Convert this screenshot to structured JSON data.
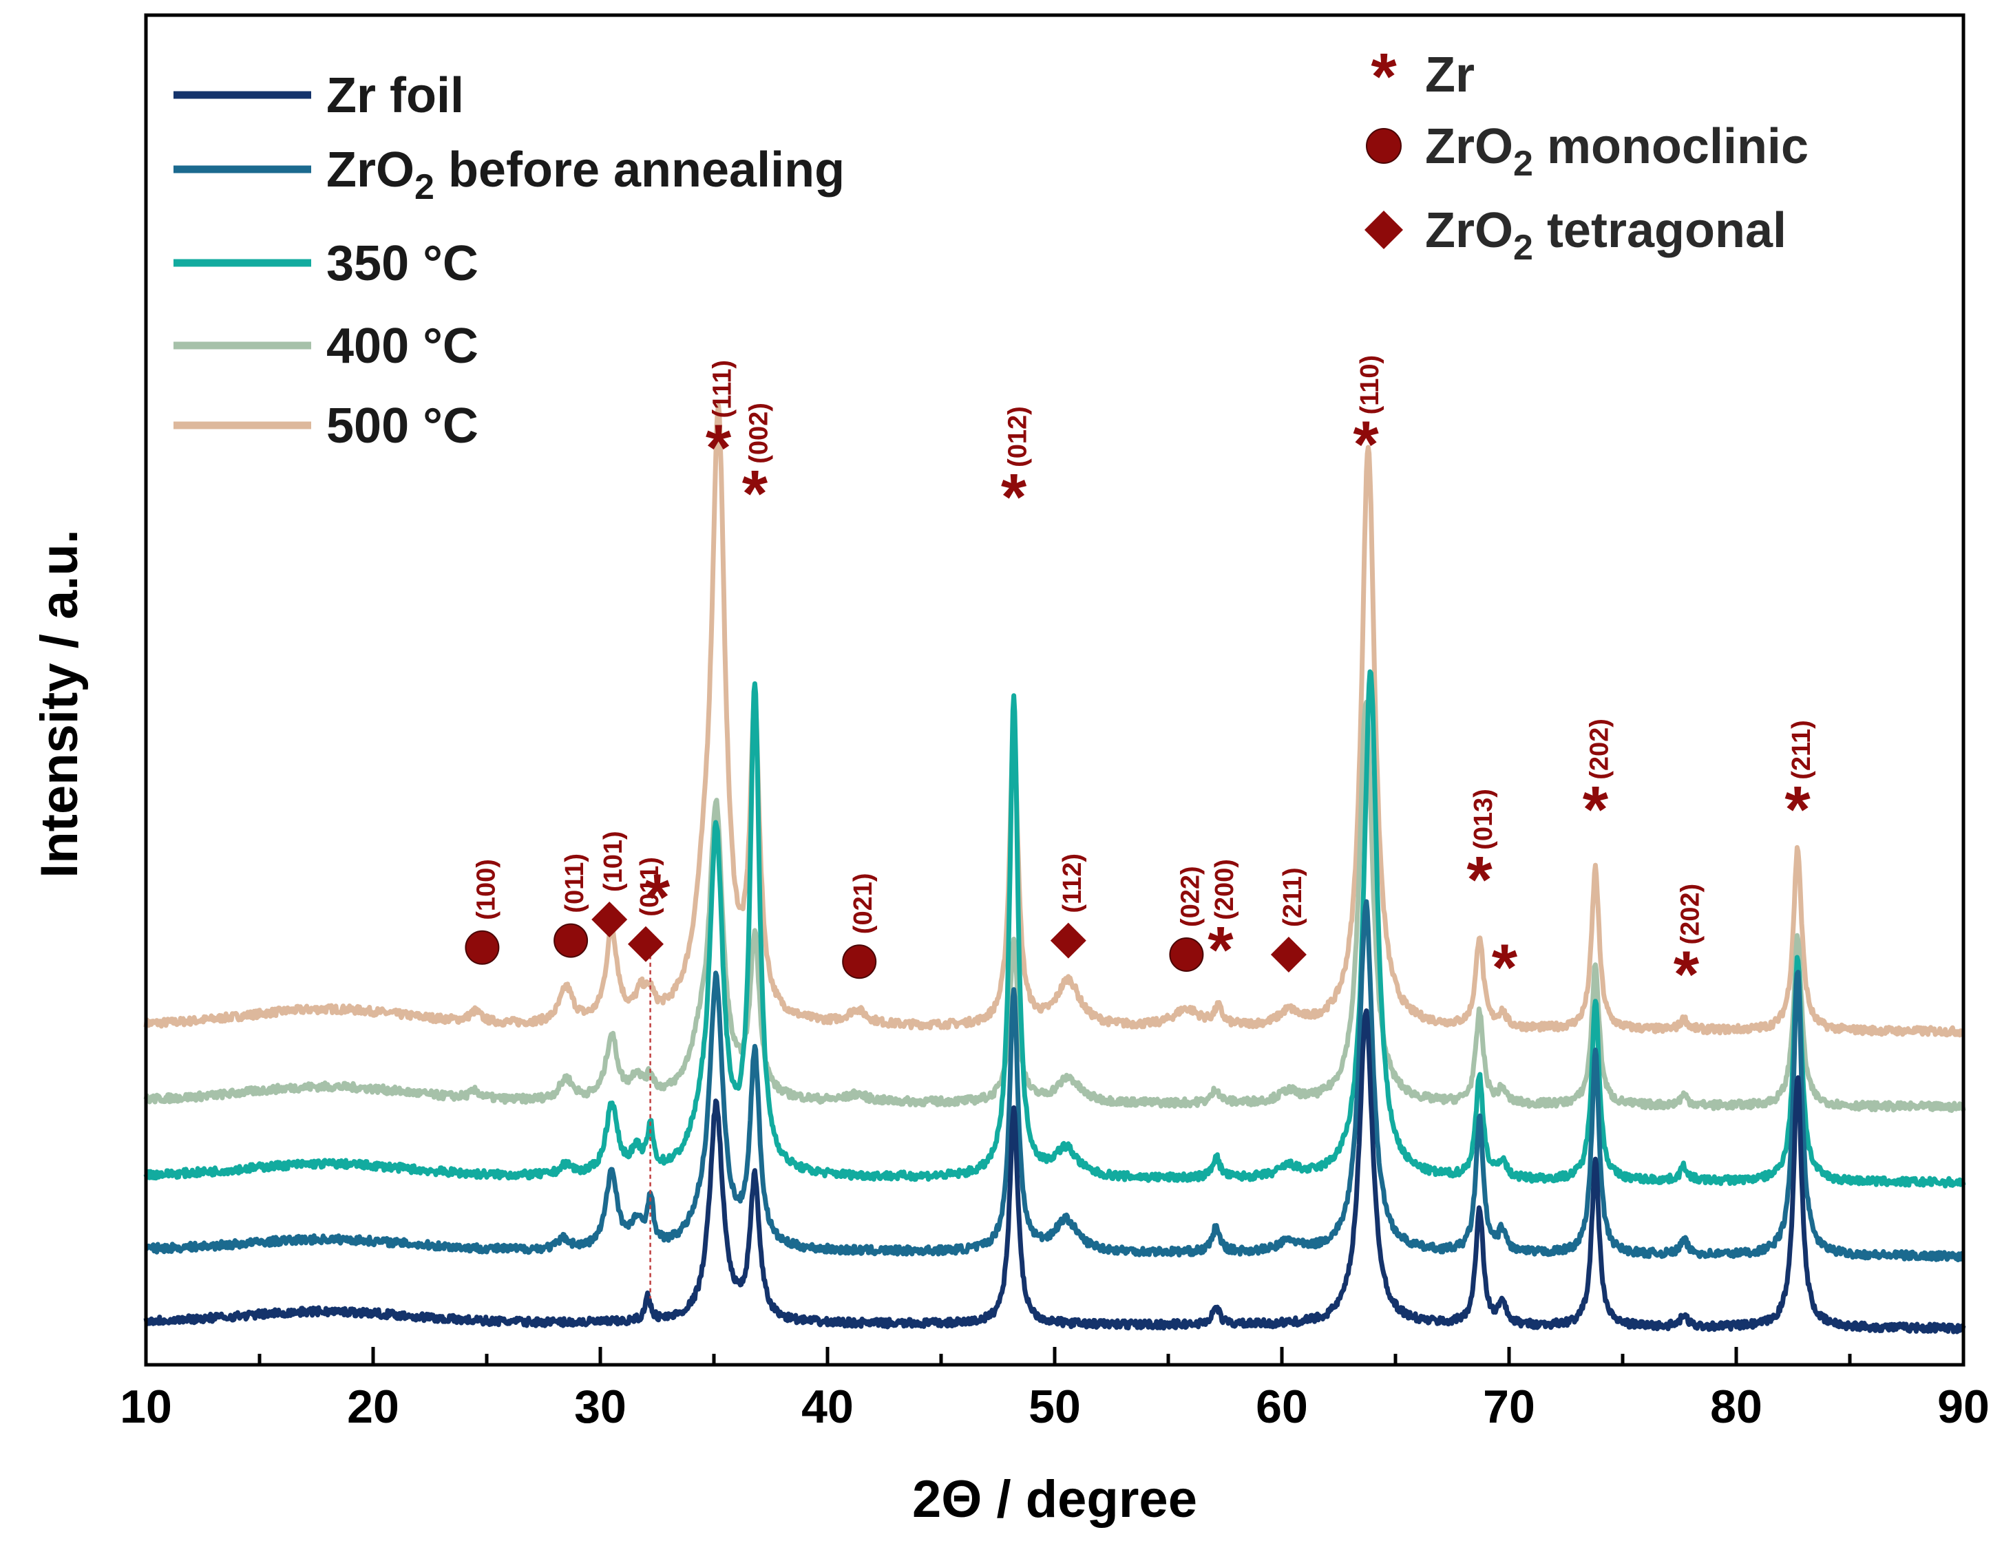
{
  "chart_data": {
    "type": "line",
    "xlabel": "2Θ / degree",
    "ylabel": "Intensity / a.u.",
    "xlim": [
      10,
      90
    ],
    "xticks": [
      10,
      20,
      30,
      40,
      50,
      60,
      70,
      80,
      90
    ],
    "xtick_labels": [
      "10",
      "20",
      "30",
      "40",
      "50",
      "60",
      "70",
      "80",
      "90"
    ],
    "y_ticks_shown": false,
    "legend_position": "top-left",
    "series": [
      {
        "name": "Zr foil",
        "color": "#14336b",
        "offset": 0.0,
        "baseline": 0.055,
        "hump": 0.03,
        "peaks": [
          [
            32.1,
            0.07,
            0.15
          ],
          [
            35.1,
            0.62,
            0.35
          ],
          [
            36.8,
            0.4,
            0.25
          ],
          [
            48.2,
            0.62,
            0.22
          ],
          [
            57.1,
            0.05,
            0.2
          ],
          [
            63.7,
            0.9,
            0.35
          ],
          [
            68.7,
            0.33,
            0.2
          ],
          [
            69.7,
            0.06,
            0.2
          ],
          [
            73.8,
            0.47,
            0.2
          ],
          [
            77.7,
            0.03,
            0.2
          ],
          [
            82.7,
            0.72,
            0.22
          ]
        ]
      },
      {
        "name": "ZrO2 before annealing",
        "color": "#1b6a8f",
        "offset": 0.21,
        "baseline": 0.05,
        "hump": 0.03,
        "peaks": [
          [
            28.4,
            0.03,
            0.3
          ],
          [
            30.5,
            0.22,
            0.3
          ],
          [
            31.6,
            0.07,
            0.3
          ],
          [
            32.2,
            0.14,
            0.15
          ],
          [
            34.4,
            0.05,
            0.6
          ],
          [
            35.1,
            0.75,
            0.35
          ],
          [
            36.8,
            0.55,
            0.25
          ],
          [
            48.2,
            0.75,
            0.22
          ],
          [
            50.5,
            0.09,
            0.6
          ],
          [
            57.1,
            0.07,
            0.2
          ],
          [
            60.3,
            0.03,
            0.5
          ],
          [
            63.7,
            1.0,
            0.35
          ],
          [
            68.7,
            0.38,
            0.2
          ],
          [
            69.7,
            0.06,
            0.2
          ],
          [
            73.8,
            0.58,
            0.2
          ],
          [
            77.7,
            0.04,
            0.2
          ],
          [
            82.7,
            0.82,
            0.22
          ]
        ]
      },
      {
        "name": "350 °C",
        "color": "#12ab9f",
        "offset": 0.42,
        "baseline": 0.05,
        "hump": 0.035,
        "peaks": [
          [
            28.5,
            0.03,
            0.3
          ],
          [
            30.5,
            0.2,
            0.3
          ],
          [
            31.6,
            0.06,
            0.3
          ],
          [
            32.2,
            0.12,
            0.15
          ],
          [
            34.4,
            0.08,
            0.6
          ],
          [
            35.1,
            0.95,
            0.35
          ],
          [
            36.8,
            1.37,
            0.25
          ],
          [
            48.2,
            1.37,
            0.22
          ],
          [
            50.5,
            0.08,
            0.6
          ],
          [
            57.1,
            0.06,
            0.2
          ],
          [
            60.3,
            0.03,
            0.5
          ],
          [
            63.9,
            1.45,
            0.35
          ],
          [
            68.7,
            0.29,
            0.2
          ],
          [
            69.7,
            0.05,
            0.2
          ],
          [
            73.8,
            0.52,
            0.2
          ],
          [
            77.7,
            0.04,
            0.2
          ],
          [
            82.7,
            0.64,
            0.22
          ]
        ]
      },
      {
        "name": "400 °C",
        "color": "#a6c1a9",
        "offset": 0.63,
        "baseline": 0.055,
        "hump": 0.04,
        "peaks": [
          [
            24.5,
            0.02,
            0.3
          ],
          [
            28.5,
            0.06,
            0.35
          ],
          [
            30.5,
            0.18,
            0.3
          ],
          [
            31.6,
            0.06,
            0.3
          ],
          [
            32.2,
            0.05,
            0.2
          ],
          [
            34.4,
            0.12,
            0.6
          ],
          [
            35.1,
            0.8,
            0.35
          ],
          [
            36.8,
            0.45,
            0.25
          ],
          [
            41.3,
            0.02,
            0.5
          ],
          [
            48.2,
            0.46,
            0.22
          ],
          [
            50.6,
            0.07,
            0.6
          ],
          [
            57.1,
            0.04,
            0.2
          ],
          [
            60.3,
            0.03,
            0.5
          ],
          [
            63.7,
            1.15,
            0.35
          ],
          [
            68.7,
            0.26,
            0.2
          ],
          [
            69.7,
            0.04,
            0.2
          ],
          [
            73.8,
            0.4,
            0.2
          ],
          [
            77.7,
            0.03,
            0.2
          ],
          [
            82.7,
            0.48,
            0.22
          ]
        ]
      },
      {
        "name": "500 °C",
        "color": "#ddb89c",
        "offset": 0.84,
        "baseline": 0.06,
        "hump": 0.045,
        "peaks": [
          [
            24.5,
            0.03,
            0.3
          ],
          [
            28.5,
            0.1,
            0.35
          ],
          [
            30.5,
            0.26,
            0.3
          ],
          [
            31.8,
            0.07,
            0.3
          ],
          [
            32.2,
            0.05,
            0.2
          ],
          [
            34.6,
            0.25,
            0.6
          ],
          [
            35.2,
            1.62,
            0.35
          ],
          [
            36.8,
            0.85,
            0.25
          ],
          [
            41.3,
            0.04,
            0.5
          ],
          [
            48.2,
            0.85,
            0.22
          ],
          [
            50.6,
            0.13,
            0.6
          ],
          [
            55.8,
            0.05,
            0.7
          ],
          [
            57.2,
            0.05,
            0.2
          ],
          [
            60.3,
            0.04,
            0.5
          ],
          [
            63.8,
            1.66,
            0.35
          ],
          [
            68.7,
            0.26,
            0.2
          ],
          [
            69.7,
            0.04,
            0.2
          ],
          [
            73.8,
            0.46,
            0.2
          ],
          [
            77.7,
            0.03,
            0.2
          ],
          [
            82.7,
            0.52,
            0.22
          ]
        ]
      }
    ],
    "phase_legend": [
      {
        "symbol": "star",
        "label": "Zr"
      },
      {
        "symbol": "circle",
        "label": "ZrO2 monoclinic"
      },
      {
        "symbol": "diamond",
        "label": "ZrO2 tetragonal"
      }
    ],
    "annotations": [
      {
        "x": 24.8,
        "marker": "circle",
        "hkl": "(100)",
        "y": 1.12
      },
      {
        "x": 28.7,
        "marker": "circle",
        "hkl": "(011)",
        "y": 1.14
      },
      {
        "x": 30.4,
        "marker": "diamond",
        "hkl": "(101)",
        "y": 1.2
      },
      {
        "x": 32.0,
        "marker": "diamond",
        "hkl": "(011)",
        "y": 1.13
      },
      {
        "x": 32.5,
        "marker": "star",
        "hkl": "",
        "y": 1.27
      },
      {
        "x": 35.2,
        "marker": "star",
        "hkl": "(111)",
        "y": 2.55
      },
      {
        "x": 36.8,
        "marker": "star",
        "hkl": "(002)",
        "y": 2.42
      },
      {
        "x": 41.4,
        "marker": "circle",
        "hkl": "(021)",
        "y": 1.08
      },
      {
        "x": 48.2,
        "marker": "star",
        "hkl": "(012)",
        "y": 2.41
      },
      {
        "x": 50.6,
        "marker": "diamond",
        "hkl": "(112)",
        "y": 1.14
      },
      {
        "x": 55.8,
        "marker": "circle",
        "hkl": "(022)",
        "y": 1.1
      },
      {
        "x": 57.3,
        "marker": "star",
        "hkl": "(200)",
        "y": 1.12
      },
      {
        "x": 60.3,
        "marker": "diamond",
        "hkl": "(211)",
        "y": 1.1
      },
      {
        "x": 63.7,
        "marker": "star",
        "hkl": "(110)",
        "y": 2.56
      },
      {
        "x": 68.7,
        "marker": "star",
        "hkl": "(013)",
        "y": 1.32
      },
      {
        "x": 69.8,
        "marker": "star",
        "hkl": "",
        "y": 1.07
      },
      {
        "x": 73.8,
        "marker": "star",
        "hkl": "(202)",
        "y": 1.52
      },
      {
        "x": 77.8,
        "marker": "star",
        "hkl": "(202)",
        "y": 1.05
      },
      {
        "x": 82.7,
        "marker": "star",
        "hkl": "(211)",
        "y": 1.52
      }
    ]
  }
}
